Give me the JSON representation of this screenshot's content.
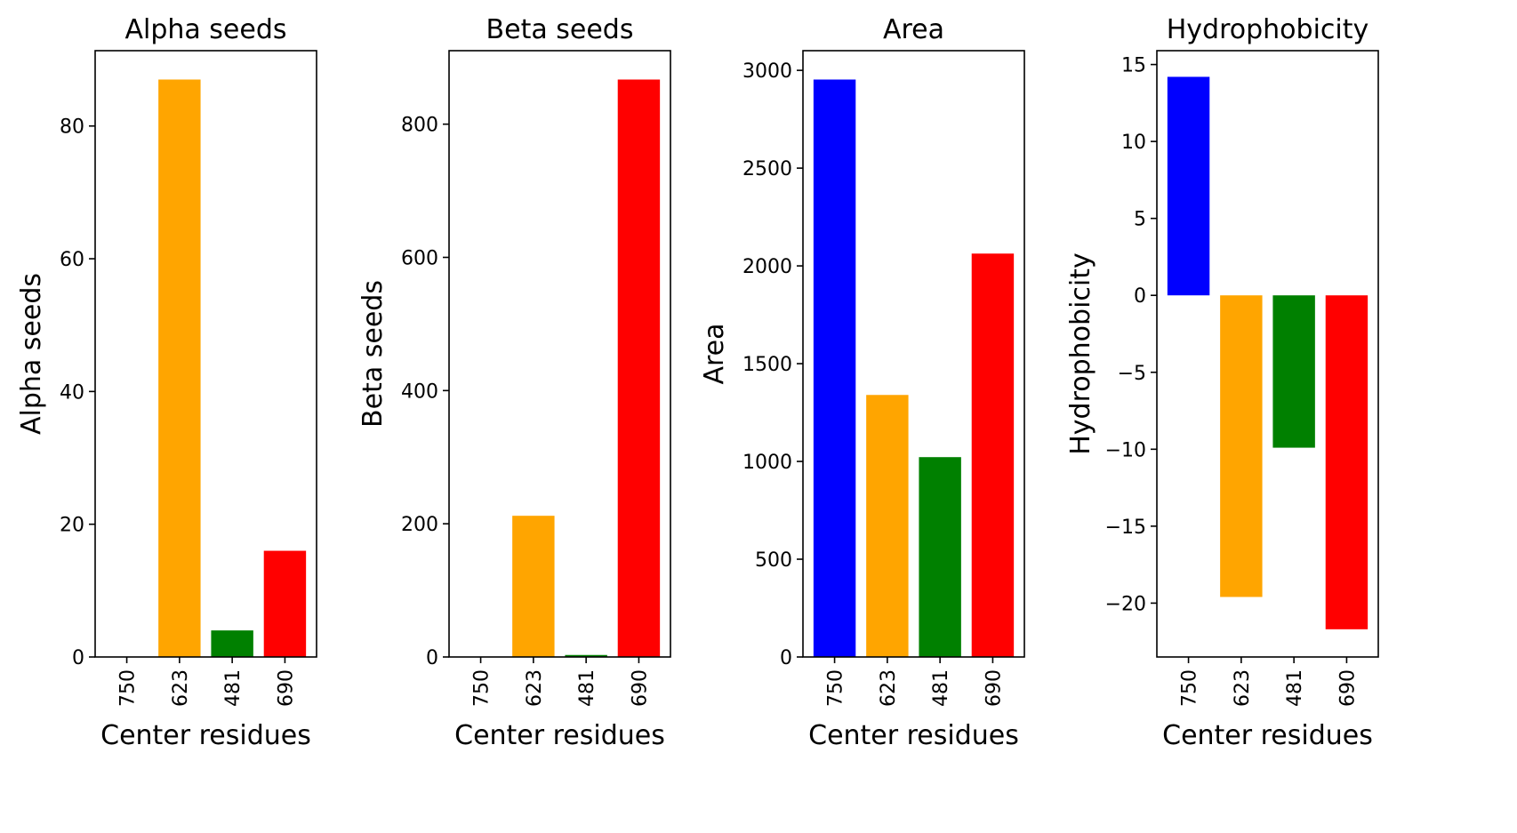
{
  "colors": {
    "750": "#0000ff",
    "623": "#ffa500",
    "481": "#008000",
    "690": "#ff0000"
  },
  "chart_data": [
    {
      "type": "bar",
      "title": "Alpha seeds",
      "xlabel": "Center residues",
      "ylabel": "Alpha seeds",
      "categories": [
        "750",
        "623",
        "481",
        "690"
      ],
      "values": [
        0,
        87,
        4,
        16
      ],
      "ylim": [
        0,
        91.35
      ],
      "yticks": [
        0,
        20,
        40,
        60,
        80
      ],
      "ytick_labels": [
        "0",
        "20",
        "40",
        "60",
        "80"
      ],
      "grid": false
    },
    {
      "type": "bar",
      "title": "Beta seeds",
      "xlabel": "Center residues",
      "ylabel": "Beta seeds",
      "categories": [
        "750",
        "623",
        "481",
        "690"
      ],
      "values": [
        0,
        212,
        3,
        867
      ],
      "ylim": [
        0,
        910.35
      ],
      "yticks": [
        0,
        200,
        400,
        600,
        800
      ],
      "ytick_labels": [
        "0",
        "200",
        "400",
        "600",
        "800"
      ],
      "grid": false
    },
    {
      "type": "bar",
      "title": "Area",
      "xlabel": "Center residues",
      "ylabel": "Area",
      "categories": [
        "750",
        "623",
        "481",
        "690"
      ],
      "values": [
        2953,
        1340,
        1022,
        2063
      ],
      "ylim": [
        0,
        3100.65
      ],
      "yticks": [
        0,
        500,
        1000,
        1500,
        2000,
        2500,
        3000
      ],
      "ytick_labels": [
        "0",
        "500",
        "1000",
        "1500",
        "2000",
        "2500",
        "3000"
      ],
      "grid": false
    },
    {
      "type": "bar",
      "title": "Hydrophobicity",
      "xlabel": "Center residues",
      "ylabel": "Hydrophobicity",
      "categories": [
        "750",
        "623",
        "481",
        "690"
      ],
      "values": [
        14.2,
        -19.6,
        -9.9,
        -21.7
      ],
      "ylim": [
        -23.5,
        15.9
      ],
      "yticks": [
        -20,
        -15,
        -10,
        -5,
        0,
        5,
        10,
        15
      ],
      "ytick_labels": [
        "−20",
        "−15",
        "−10",
        "−5",
        "0",
        "5",
        "10",
        "15"
      ],
      "grid": false
    }
  ]
}
